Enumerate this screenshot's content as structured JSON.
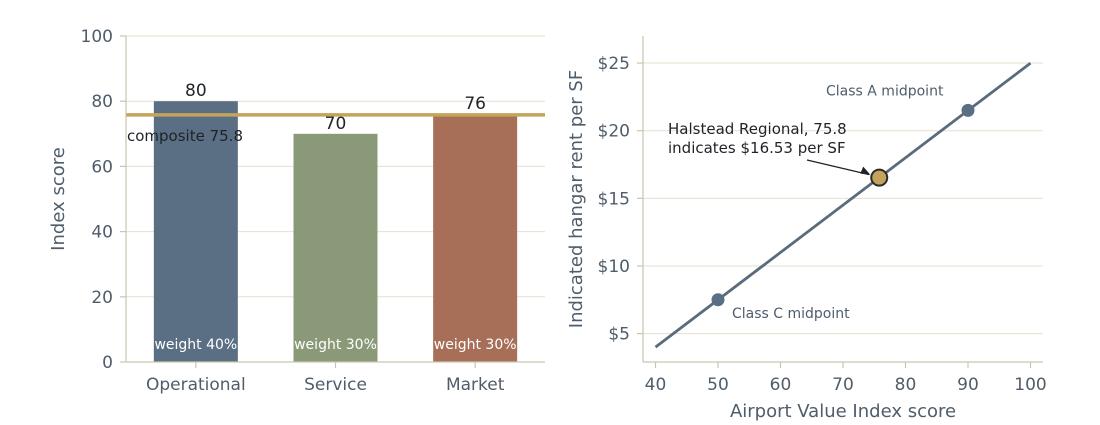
{
  "chart_data": [
    {
      "type": "bar",
      "categories": [
        "Operational",
        "Service",
        "Market"
      ],
      "values": [
        80,
        70,
        76
      ],
      "value_labels": [
        "80",
        "70",
        "76"
      ],
      "weight_labels": [
        "weight 40%",
        "weight 30%",
        "weight 30%"
      ],
      "ylabel": "Index score",
      "ylim": [
        0,
        100
      ],
      "yticks": [
        0,
        20,
        40,
        60,
        80,
        100
      ],
      "reference_line": {
        "value": 75.8,
        "label": "composite 75.8"
      },
      "grid": true,
      "colors": {
        "bars": [
          "#5a6f84",
          "#8a9a78",
          "#a86f58"
        ],
        "reference": "#c4a35a"
      }
    },
    {
      "type": "line",
      "xlabel": "Airport Value Index score",
      "ylabel": "Indicated hangar rent per SF",
      "xlim": [
        38,
        102
      ],
      "ylim": [
        2.9,
        27
      ],
      "xticks": [
        40,
        50,
        60,
        70,
        80,
        90,
        100
      ],
      "yticks": [
        5,
        10,
        15,
        20,
        25
      ],
      "ytick_labels": [
        "$5",
        "$10",
        "$15",
        "$20",
        "$25"
      ],
      "grid": true,
      "series": [
        {
          "x": [
            40,
            100
          ],
          "y": [
            4.0,
            25.0
          ]
        }
      ],
      "points": [
        {
          "x": 50,
          "y": 7.5,
          "label": "Class C midpoint"
        },
        {
          "x": 90,
          "y": 21.5,
          "label": "Class A midpoint"
        }
      ],
      "highlight": {
        "x": 75.8,
        "y": 16.53,
        "annotation": [
          "Halstead Regional, 75.8",
          "indicates $16.53 per SF"
        ]
      },
      "colors": {
        "line": "#5a6b7c",
        "points": "#5a6f84",
        "highlight": "#c4a35a"
      }
    }
  ]
}
